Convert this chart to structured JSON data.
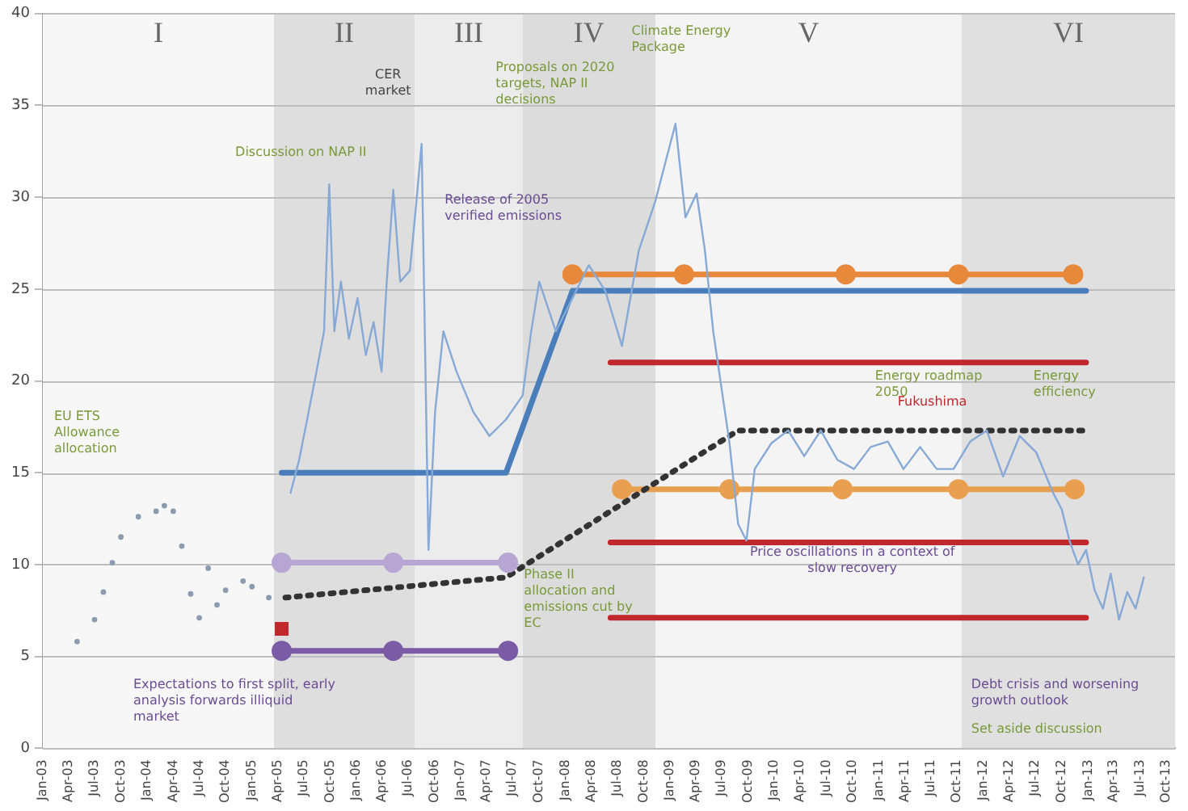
{
  "chart_data": {
    "type": "line",
    "grid": "y",
    "xlim": [
      "2003-01-01",
      "2013-11-01"
    ],
    "xticks": [
      {
        "value": "2003-01",
        "label": "Jan-03"
      },
      {
        "value": "2003-04",
        "label": "Apr-03"
      },
      {
        "value": "2003-07",
        "label": "Jul-03"
      },
      {
        "value": "2003-10",
        "label": "Oct-03"
      },
      {
        "value": "2004-01",
        "label": "Jan-04"
      },
      {
        "value": "2004-04",
        "label": "Apr-04"
      },
      {
        "value": "2004-07",
        "label": "Jul-04"
      },
      {
        "value": "2004-10",
        "label": "Oct-04"
      },
      {
        "value": "2005-01",
        "label": "Jan-05"
      },
      {
        "value": "2005-04",
        "label": "Apr-05"
      },
      {
        "value": "2005-07",
        "label": "Jul-05"
      },
      {
        "value": "2005-10",
        "label": "Oct-05"
      },
      {
        "value": "2006-01",
        "label": "Jan-06"
      },
      {
        "value": "2006-04",
        "label": "Apr-06"
      },
      {
        "value": "2006-07",
        "label": "Jul-06"
      },
      {
        "value": "2006-10",
        "label": "Oct-06"
      },
      {
        "value": "2007-01",
        "label": "Jan-07"
      },
      {
        "value": "2007-04",
        "label": "Apr-07"
      },
      {
        "value": "2007-07",
        "label": "Jul-07"
      },
      {
        "value": "2007-10",
        "label": "Oct-07"
      },
      {
        "value": "2008-01",
        "label": "Jan-08"
      },
      {
        "value": "2008-04",
        "label": "Apr-08"
      },
      {
        "value": "2008-07",
        "label": "Jul-08"
      },
      {
        "value": "2008-10",
        "label": "Oct-08"
      },
      {
        "value": "2009-01",
        "label": "Jan-09"
      },
      {
        "value": "2009-04",
        "label": "Apr-09"
      },
      {
        "value": "2009-07",
        "label": "Jul-09"
      },
      {
        "value": "2009-10",
        "label": "Oct-09"
      },
      {
        "value": "2010-01",
        "label": "Jan-10"
      },
      {
        "value": "2010-04",
        "label": "Apr-10"
      },
      {
        "value": "2010-07",
        "label": "Jul-10"
      },
      {
        "value": "2010-10",
        "label": "Oct-10"
      },
      {
        "value": "2011-01",
        "label": "Jan-11"
      },
      {
        "value": "2011-04",
        "label": "Apr-11"
      },
      {
        "value": "2011-07",
        "label": "Jul-11"
      },
      {
        "value": "2011-10",
        "label": "Oct-11"
      },
      {
        "value": "2012-01",
        "label": "Jan-12"
      },
      {
        "value": "2012-04",
        "label": "Apr-12"
      },
      {
        "value": "2012-07",
        "label": "Jul-12"
      },
      {
        "value": "2012-10",
        "label": "Oct-12"
      },
      {
        "value": "2013-01",
        "label": "Jan-13"
      },
      {
        "value": "2013-04",
        "label": "Apr-13"
      },
      {
        "value": "2013-07",
        "label": "Jul-13"
      },
      {
        "value": "2013-10",
        "label": "Oct-13"
      }
    ],
    "ylim": [
      0,
      40
    ],
    "yticks": [
      0,
      5,
      10,
      15,
      20,
      25,
      30,
      35,
      40
    ],
    "bands": [
      {
        "axis": "x",
        "from": "2003-01-01",
        "to": "2005-03-19",
        "label": "I",
        "color": "#f7f7f7"
      },
      {
        "axis": "x",
        "from": "2005-03-19",
        "to": "2006-07-24",
        "label": "II",
        "color": "#dedede"
      },
      {
        "axis": "x",
        "from": "2006-07-24",
        "to": "2007-08-05",
        "label": "III",
        "color": "#ececec"
      },
      {
        "axis": "x",
        "from": "2007-08-05",
        "to": "2008-11-11",
        "label": "IV",
        "color": "#dcdcdc"
      },
      {
        "axis": "x",
        "from": "2008-11-11",
        "to": "2011-10-17",
        "label": "V",
        "color": "#f4f4f4"
      },
      {
        "axis": "x",
        "from": "2011-10-17",
        "to": "2013-11-01",
        "label": "VI",
        "color": "#e0e0e0"
      }
    ],
    "series": [
      {
        "type": "scatter",
        "marker": "circle",
        "color": "#8a9bb0",
        "x": [
          "2003-05",
          "2003-07",
          "2003-08",
          "2003-09",
          "2003-10",
          "2003-12",
          "2004-02",
          "2004-03",
          "2004-04",
          "2004-05",
          "2004-06",
          "2004-07",
          "2004-08",
          "2004-09",
          "2004-10",
          "2004-12",
          "2005-01",
          "2005-03"
        ],
        "values": [
          5.8,
          7.0,
          8.5,
          10.1,
          11.5,
          12.6,
          12.9,
          13.2,
          12.9,
          11.0,
          8.4,
          7.1,
          9.8,
          7.8,
          8.6,
          9.1,
          8.8,
          8.2
        ]
      },
      {
        "type": "line",
        "color": "#86a9d6",
        "x": [
          "2005-05-16",
          "2005-06-15",
          "2005-07-13",
          "2005-08-12",
          "2005-09-10",
          "2005-09-28",
          "2005-10-16",
          "2005-11-08",
          "2005-12-06",
          "2006-01-05",
          "2006-02-03",
          "2006-03-02",
          "2006-03-30",
          "2006-04-17",
          "2006-05-10",
          "2006-06-03",
          "2006-07-07",
          "2006-07-30",
          "2006-08-17",
          "2006-09-10",
          "2006-10-03",
          "2006-11-01",
          "2006-12-17",
          "2007-02-14",
          "2007-04-11",
          "2007-06-08",
          "2007-08-05",
          "2007-09-04",
          "2007-10-02",
          "2007-11-29",
          "2008-01-26",
          "2008-03-23",
          "2008-05-20",
          "2008-07-17",
          "2008-09-14",
          "2008-11-11",
          "2009-01-20",
          "2009-02-24",
          "2009-04-04",
          "2009-05-03",
          "2009-06-01",
          "2009-06-30",
          "2009-07-28",
          "2009-08-27",
          "2009-09-25",
          "2009-10-24",
          "2009-12-21",
          "2010-02-18",
          "2010-04-15",
          "2010-06-12",
          "2010-08-09",
          "2010-10-06",
          "2010-12-03",
          "2011-02-01",
          "2011-03-28",
          "2011-05-25",
          "2011-07-22",
          "2011-09-19",
          "2011-11-16",
          "2012-01-13",
          "2012-03-10",
          "2012-05-07",
          "2012-07-04",
          "2012-09-01",
          "2012-10-01",
          "2012-10-28",
          "2012-11-27",
          "2012-12-25",
          "2013-01-24",
          "2013-02-22",
          "2013-03-21",
          "2013-04-19",
          "2013-05-18",
          "2013-06-16",
          "2013-07-15"
        ],
        "values": [
          13.9,
          15.7,
          17.9,
          20.3,
          22.7,
          30.7,
          22.7,
          25.4,
          22.3,
          24.5,
          21.4,
          23.2,
          20.5,
          25.4,
          30.4,
          25.4,
          26.0,
          29.8,
          32.9,
          10.8,
          18.3,
          22.7,
          20.5,
          18.3,
          17.0,
          17.9,
          19.2,
          22.7,
          25.4,
          22.7,
          24.5,
          26.3,
          24.9,
          21.9,
          27.1,
          29.8,
          34.0,
          28.9,
          30.2,
          27.1,
          22.7,
          19.6,
          16.6,
          12.2,
          11.3,
          15.2,
          16.6,
          17.3,
          15.9,
          17.3,
          15.7,
          15.2,
          16.4,
          16.7,
          15.2,
          16.4,
          15.2,
          15.2,
          16.7,
          17.3,
          14.8,
          17.0,
          16.1,
          13.9,
          13.0,
          11.3,
          10.0,
          10.8,
          8.6,
          7.6,
          9.5,
          7.0,
          8.5,
          7.6,
          9.3
        ]
      },
      {
        "type": "line",
        "color": "#b7a6d4",
        "marker": "circle",
        "x": [
          "2005-04-15",
          "2006-05-10",
          "2007-06-15"
        ],
        "values": [
          10.1,
          10.1,
          10.1
        ]
      },
      {
        "type": "line",
        "color": "#7b5aa6",
        "marker": "circle",
        "x": [
          "2005-04-15",
          "2006-05-10",
          "2007-06-15"
        ],
        "values": [
          5.3,
          5.3,
          5.3
        ]
      },
      {
        "type": "scatter",
        "marker": "square",
        "color": "#c0282d",
        "x": [
          "2005-04-15"
        ],
        "values": [
          6.5
        ]
      },
      {
        "type": "line",
        "color": "#333333",
        "line_style": "dotted",
        "x": [
          "2005-04-28",
          "2007-06-08",
          "2009-08-27",
          "2012-12-25"
        ],
        "values": [
          8.2,
          9.3,
          17.3,
          17.3
        ]
      },
      {
        "type": "line",
        "color": "#4a7ebb",
        "x": [
          "2005-04-15",
          "2007-06-08",
          "2008-01-26",
          "2012-12-25"
        ],
        "values": [
          15,
          15,
          24.9,
          24.9
        ]
      },
      {
        "type": "line",
        "color": "#e8883a",
        "marker": "circle",
        "x": [
          "2008-01-26",
          "2009-02-19",
          "2010-09-07",
          "2011-10-06",
          "2012-11-10"
        ],
        "values": [
          25.8,
          25.8,
          25.8,
          25.8,
          25.8
        ]
      },
      {
        "type": "line",
        "color": "#e8a050",
        "marker": "circle",
        "x": [
          "2008-07-17",
          "2009-07-28",
          "2010-08-27",
          "2011-10-06",
          "2012-11-15"
        ],
        "values": [
          14.1,
          14.1,
          14.1,
          14.1,
          14.1
        ]
      },
      {
        "type": "line",
        "color": "#c0282d",
        "x": [
          "2008-06-07",
          "2012-12-25"
        ],
        "values": [
          21.0,
          21.0
        ]
      },
      {
        "type": "line",
        "color": "#c0282d",
        "x": [
          "2008-06-07",
          "2012-12-25"
        ],
        "values": [
          11.2,
          11.2
        ]
      },
      {
        "type": "line",
        "color": "#c0282d",
        "x": [
          "2008-06-07",
          "2012-12-25"
        ],
        "values": [
          7.1,
          7.1
        ]
      }
    ],
    "annotations": [
      "EU ETS Allowance allocation",
      "Expectations to first split, early analysis forwards illiquid market",
      "Discussion on NAP II",
      "CER market",
      "Release of 2005 verified emissions",
      "Proposals on 2020 targets, NAP II decisions",
      "Climate Energy Package",
      "Phase II allocation and emissions cut by EC",
      "Price oscillations in a context of slow recovery",
      "Energy roadmap 2050",
      "Fukushima",
      "Energy efficiency",
      "Debt crisis and worsening growth outlook",
      "Set aside discussion"
    ]
  }
}
